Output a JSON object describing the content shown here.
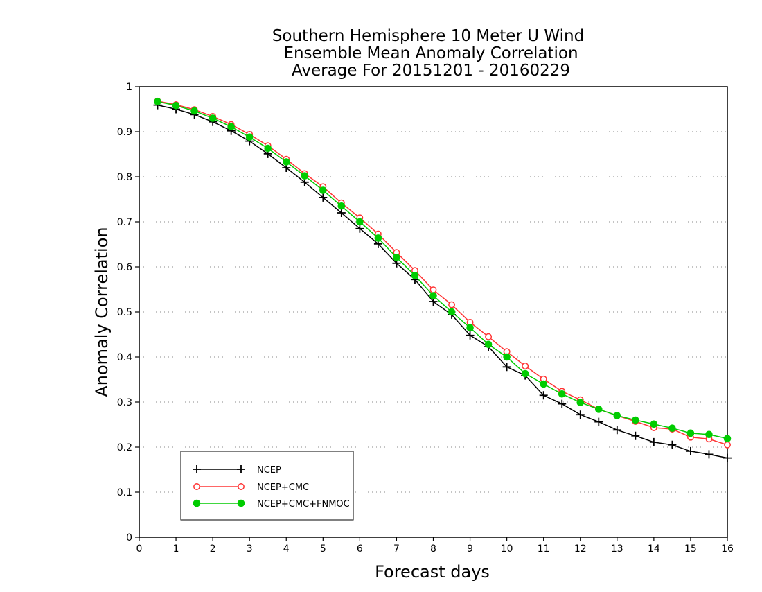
{
  "chart_data": {
    "type": "line",
    "title_lines": [
      "Southern Hemisphere 10 Meter U Wind",
      "Ensemble Mean Anomaly Correlation",
      "Average For 20151201 - 20160229"
    ],
    "xlabel": "Forecast days",
    "ylabel": "Anomaly Correlation",
    "xlim": [
      0,
      16
    ],
    "ylim": [
      0,
      1
    ],
    "x_ticks": [
      "0",
      "1",
      "2",
      "3",
      "4",
      "5",
      "6",
      "7",
      "8",
      "9",
      "10",
      "11",
      "12",
      "13",
      "14",
      "15",
      "16"
    ],
    "y_ticks": [
      "0",
      "0.1",
      "0.2",
      "0.3",
      "0.4",
      "0.5",
      "0.6",
      "0.7",
      "0.8",
      "0.9",
      "1"
    ],
    "grid": "horizontal dotted",
    "legend_position": "bottom-left",
    "x": [
      0.5,
      1,
      1.5,
      2,
      2.5,
      3,
      3.5,
      4,
      4.5,
      5,
      5.5,
      6,
      6.5,
      7,
      7.5,
      8,
      8.5,
      9,
      9.5,
      10,
      10.5,
      11,
      11.5,
      12,
      12.5,
      13,
      13.5,
      14,
      14.5,
      15,
      15.5,
      16
    ],
    "series": [
      {
        "name": "NCEP",
        "color": "#000000",
        "marker": "plus",
        "values": [
          0.959,
          0.95,
          0.938,
          0.922,
          0.902,
          0.879,
          0.851,
          0.82,
          0.788,
          0.754,
          0.72,
          0.685,
          0.651,
          0.608,
          0.572,
          0.523,
          0.494,
          0.448,
          0.423,
          0.378,
          0.359,
          0.315,
          0.296,
          0.272,
          0.256,
          0.238,
          0.225,
          0.211,
          0.205,
          0.191,
          0.184,
          0.176
        ]
      },
      {
        "name": "NCEP+CMC",
        "color": "#ff3333",
        "marker": "open-circle",
        "values": [
          0.968,
          0.96,
          0.949,
          0.934,
          0.916,
          0.894,
          0.869,
          0.839,
          0.807,
          0.778,
          0.742,
          0.709,
          0.673,
          0.632,
          0.592,
          0.549,
          0.516,
          0.477,
          0.445,
          0.412,
          0.38,
          0.351,
          0.324,
          0.305,
          0.284,
          0.27,
          0.257,
          0.243,
          0.24,
          0.222,
          0.218,
          0.205
        ]
      },
      {
        "name": "NCEP+CMC+FNMOC",
        "color": "#00cc00",
        "marker": "filled-circle",
        "values": [
          0.967,
          0.958,
          0.946,
          0.93,
          0.911,
          0.888,
          0.863,
          0.833,
          0.802,
          0.77,
          0.735,
          0.7,
          0.664,
          0.621,
          0.581,
          0.536,
          0.5,
          0.465,
          0.428,
          0.4,
          0.363,
          0.34,
          0.318,
          0.299,
          0.284,
          0.27,
          0.26,
          0.251,
          0.242,
          0.231,
          0.228,
          0.219
        ]
      }
    ]
  }
}
